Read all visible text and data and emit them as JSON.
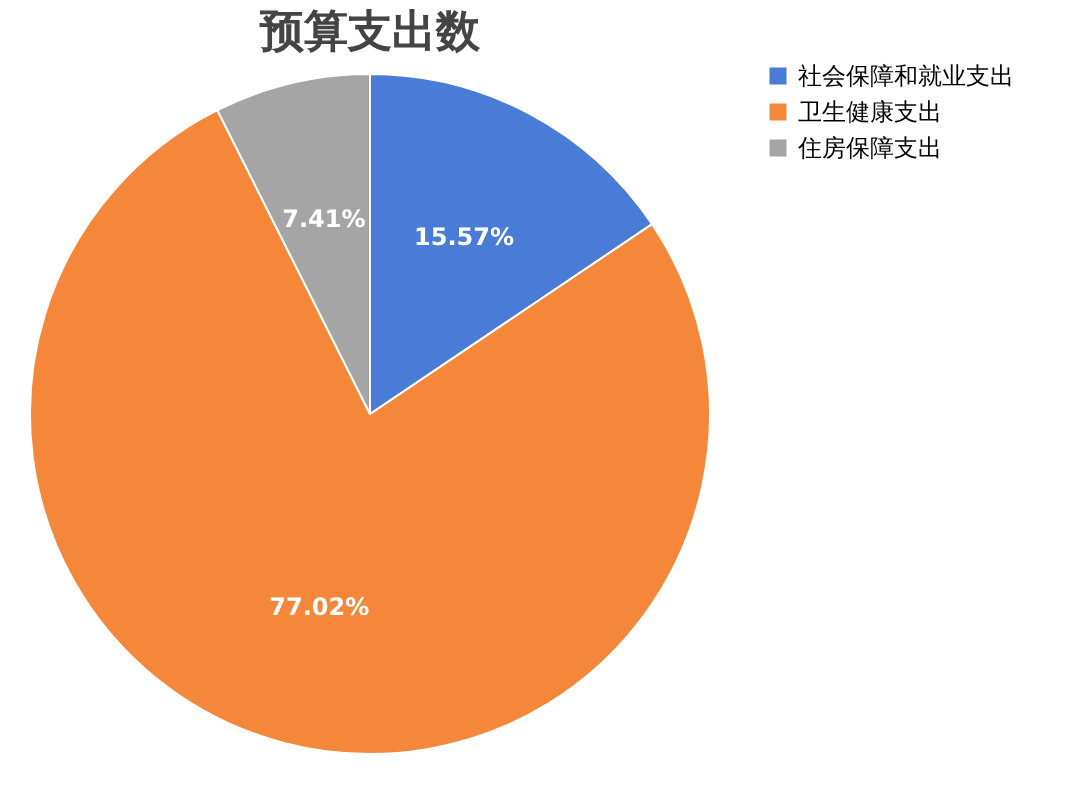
{
  "chart_data": {
    "type": "pie",
    "title": "预算支出数",
    "categories": [
      "社会保障和就业支出",
      "卫生健康支出",
      "住房保障支出"
    ],
    "values": [
      15.57,
      77.02,
      7.41
    ],
    "colors": [
      "#4a7bd6",
      "#f5873a",
      "#a5a5a5"
    ],
    "value_labels": [
      "15.57%",
      "77.02%",
      "7.41%"
    ],
    "legend": "right"
  }
}
